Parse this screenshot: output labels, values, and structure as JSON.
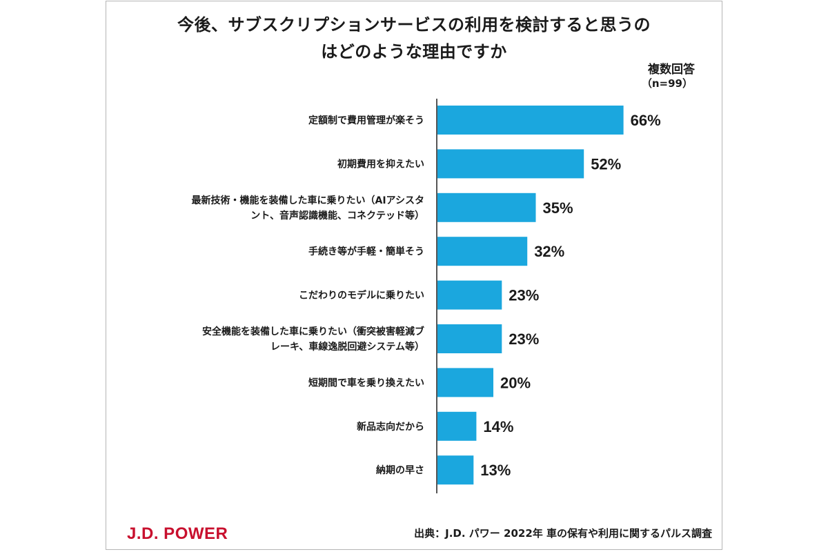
{
  "title_line1": "今後、サブスクリプションサービスの利用を検討すると思うの",
  "title_line2": "はどのような理由ですか",
  "note": "複数回答",
  "sample": "（n=99）",
  "logo": "J.D. POWER",
  "source": "出典：J.D. パワー 2022年 車の保有や利用に関するパルス調査",
  "colors": {
    "bar": "#1ba7de",
    "axis": "#555555",
    "logo": "#c8102e"
  },
  "chart_data": {
    "type": "bar",
    "orientation": "horizontal",
    "value_unit": "%",
    "categories": [
      [
        "定額制で費用管理が楽そう"
      ],
      [
        "初期費用を抑えたい"
      ],
      [
        "最新技術・機能を装備した車に乗りたい（AIアシスタ",
        "ント、音声認識機能、コネクテッド等）"
      ],
      [
        "手続き等が手軽・簡単そう"
      ],
      [
        "こだわりのモデルに乗りたい"
      ],
      [
        "安全機能を装備した車に乗りたい（衝突被害軽減ブ",
        "レーキ、車線逸脱回避システム等）"
      ],
      [
        "短期間で車を乗り換えたい"
      ],
      [
        "新品志向だから"
      ],
      [
        "納期の早さ"
      ]
    ],
    "values": [
      66,
      52,
      35,
      32,
      23,
      23,
      20,
      14,
      13
    ],
    "value_labels": [
      "66%",
      "52%",
      "35%",
      "32%",
      "23%",
      "23%",
      "20%",
      "14%",
      "13%"
    ],
    "xlim": [
      0,
      100
    ],
    "grid": false,
    "legend": "none"
  }
}
